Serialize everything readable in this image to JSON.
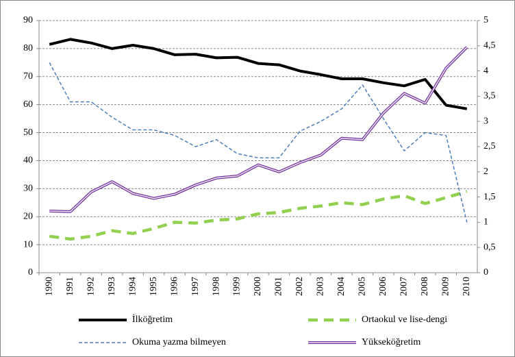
{
  "chart_data": {
    "type": "line",
    "categories": [
      "1990",
      "1991",
      "1992",
      "1993",
      "1994",
      "1995",
      "1996",
      "1997",
      "1998",
      "1999",
      "2000",
      "2001",
      "2002",
      "2003",
      "2004",
      "2005",
      "2006",
      "2007",
      "2008",
      "2009",
      "2010"
    ],
    "series": [
      {
        "name": "İlköğretim",
        "color": "#000000",
        "values": [
          81.5,
          83.3,
          82,
          80,
          81.2,
          80,
          77.8,
          78,
          76.7,
          76.9,
          74.7,
          74.2,
          72,
          70.7,
          69.2,
          69.2,
          67.8,
          66.7,
          69,
          59.8,
          58.5
        ]
      },
      {
        "name": "Ortaokul ve lise-dengi",
        "color": "#92d050",
        "values": [
          13,
          12,
          13,
          15,
          14,
          15.8,
          18,
          17.7,
          18.8,
          19.2,
          21,
          21.5,
          23,
          23.8,
          25,
          24.3,
          26.3,
          27.5,
          24.7,
          26.8,
          29
        ]
      },
      {
        "name": "Okuma yazma bilmeyen",
        "color": "#4a7ebb",
        "values": [
          75,
          61,
          61,
          55.5,
          51,
          51,
          49,
          45,
          47.5,
          42.5,
          41,
          41,
          50.5,
          54,
          58.5,
          67,
          55,
          43.5,
          50,
          49,
          18
        ]
      },
      {
        "name": "Yükseköğretim",
        "color": "#7030a0",
        "values": [
          22,
          21.8,
          28.8,
          32.5,
          28.3,
          26.5,
          28,
          31.3,
          33.8,
          34.5,
          38.5,
          36,
          39.3,
          42,
          48,
          47.5,
          57,
          64,
          60.5,
          73,
          80.5
        ]
      }
    ],
    "ylim": [
      0,
      90
    ],
    "yticks": [
      0,
      10,
      20,
      30,
      40,
      50,
      60,
      70,
      80,
      90
    ],
    "y2lim": [
      0,
      5
    ],
    "y2ticks": [
      0,
      {
        "value": 0.5,
        "label": "0,5"
      },
      1,
      {
        "value": 1.5,
        "label": "1,5"
      },
      2,
      {
        "value": 2.5,
        "label": "2,5"
      },
      3,
      {
        "value": 3.5,
        "label": "3,5"
      },
      4,
      {
        "value": 4.5,
        "label": "4,5"
      },
      5
    ],
    "grid": true
  }
}
